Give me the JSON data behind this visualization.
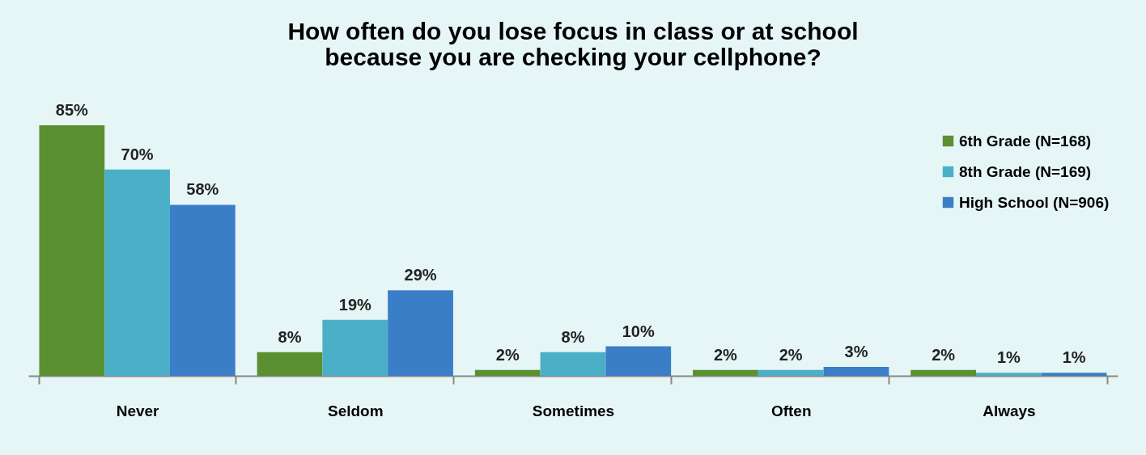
{
  "chart_data": {
    "type": "bar",
    "title": [
      "How often do you lose focus in class or at school",
      "because you are checking your cellphone?"
    ],
    "categories": [
      "Never",
      "Seldom",
      "Sometimes",
      "Often",
      "Always"
    ],
    "series": [
      {
        "name": "6th Grade (N=168)",
        "color": "#5b9030",
        "values": [
          85,
          8,
          2,
          2,
          2
        ],
        "value_labels": [
          "85%",
          "8%",
          "2%",
          "2%",
          "2%"
        ]
      },
      {
        "name": "8th Grade (N=169)",
        "color": "#4bafc8",
        "values": [
          70,
          19,
          8,
          2,
          1
        ],
        "value_labels": [
          "70%",
          "19%",
          "8%",
          "2%",
          "1%"
        ]
      },
      {
        "name": "High School (N=906)",
        "color": "#3a7ec8",
        "values": [
          58,
          29,
          10,
          3,
          1
        ],
        "value_labels": [
          "58%",
          "29%",
          "10%",
          "3%",
          "1%"
        ]
      }
    ],
    "legend": "top right",
    "grid": false
  }
}
